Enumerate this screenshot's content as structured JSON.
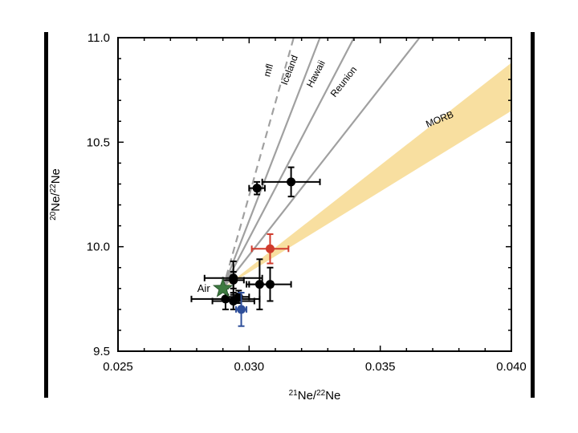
{
  "chart_data": {
    "type": "scatter",
    "title": "",
    "xlabel": {
      "sup_a": "21",
      "base_a": "Ne/",
      "sup_b": "22",
      "base_b": "Ne"
    },
    "ylabel": {
      "sup_a": "20",
      "base_a": "Ne/",
      "sup_b": "22",
      "base_b": "Ne"
    },
    "xlim": [
      0.025,
      0.04
    ],
    "ylim": [
      9.5,
      11.0
    ],
    "x_ticks": [
      "0.025",
      "0.030",
      "0.035",
      "0.040"
    ],
    "y_ticks": [
      "9.5",
      "10.0",
      "10.5",
      "11.0"
    ],
    "grid": false,
    "air": {
      "label": "Air",
      "x": 0.029,
      "y": 9.8,
      "color": "#3d7a40"
    },
    "lines": [
      {
        "name": "mfl",
        "from": [
          0.029,
          9.8
        ],
        "to": [
          0.0317,
          11.0
        ],
        "dashed": true
      },
      {
        "name": "Iceland",
        "from": [
          0.029,
          9.8
        ],
        "to": [
          0.0327,
          11.0
        ],
        "dashed": false
      },
      {
        "name": "Hawaii",
        "from": [
          0.029,
          9.8
        ],
        "to": [
          0.034,
          11.0
        ],
        "dashed": false
      },
      {
        "name": "Reunion",
        "from": [
          0.029,
          9.8
        ],
        "to": [
          0.0365,
          11.0
        ],
        "dashed": false
      }
    ],
    "morb_band": {
      "label": "MORB",
      "color": "#f8dfa0",
      "start": [
        0.029,
        9.8
      ],
      "end_upper": [
        0.04,
        10.88
      ],
      "end_lower": [
        0.04,
        10.65
      ]
    },
    "points": [
      {
        "x": 0.0303,
        "y": 10.28,
        "xerr": 0.0003,
        "yerr": 0.03,
        "color": "#000000"
      },
      {
        "x": 0.0316,
        "y": 10.31,
        "xerr": 0.0011,
        "yerr": 0.07,
        "color": "#000000"
      },
      {
        "x": 0.0308,
        "y": 9.99,
        "xerr": 0.0007,
        "yerr": 0.07,
        "color": "#d03a2c"
      },
      {
        "x": 0.0294,
        "y": 9.85,
        "xerr": 0.0011,
        "yerr": 0.08,
        "color": "#000000"
      },
      {
        "x": 0.0294,
        "y": 9.84,
        "xerr": 0.0004,
        "yerr": 0.04,
        "color": "#000000"
      },
      {
        "x": 0.0304,
        "y": 9.82,
        "xerr": 0.0005,
        "yerr": 0.12,
        "color": "#000000"
      },
      {
        "x": 0.0308,
        "y": 9.82,
        "xerr": 0.0008,
        "yerr": 0.08,
        "color": "#000000"
      },
      {
        "x": 0.0291,
        "y": 9.75,
        "xerr": 0.0013,
        "yerr": 0.05,
        "color": "#000000"
      },
      {
        "x": 0.0294,
        "y": 9.74,
        "xerr": 0.0008,
        "yerr": 0.04,
        "color": "#000000"
      },
      {
        "x": 0.0296,
        "y": 9.76,
        "xerr": 0.0004,
        "yerr": 0.03,
        "color": "#000000"
      },
      {
        "x": 0.0297,
        "y": 9.7,
        "xerr": 0.0002,
        "yerr": 0.08,
        "color": "#2f4f9a"
      }
    ]
  }
}
